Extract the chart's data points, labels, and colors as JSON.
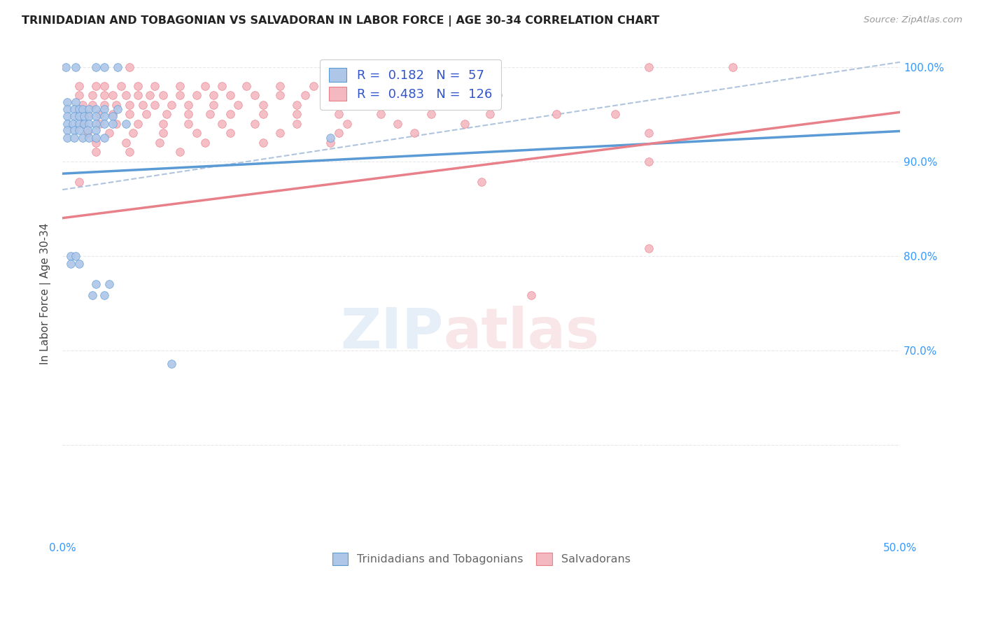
{
  "title": "TRINIDADIAN AND TOBAGONIAN VS SALVADORAN IN LABOR FORCE | AGE 30-34 CORRELATION CHART",
  "source": "Source: ZipAtlas.com",
  "ylabel": "In Labor Force | Age 30-34",
  "x_min": 0.0,
  "x_max": 0.5,
  "y_min": 0.5,
  "y_max": 1.02,
  "blue_scatter": [
    [
      0.002,
      1.0
    ],
    [
      0.008,
      1.0
    ],
    [
      0.02,
      1.0
    ],
    [
      0.025,
      1.0
    ],
    [
      0.033,
      1.0
    ],
    [
      0.003,
      0.963
    ],
    [
      0.008,
      0.963
    ],
    [
      0.003,
      0.955
    ],
    [
      0.007,
      0.955
    ],
    [
      0.01,
      0.955
    ],
    [
      0.012,
      0.955
    ],
    [
      0.016,
      0.955
    ],
    [
      0.02,
      0.955
    ],
    [
      0.025,
      0.955
    ],
    [
      0.033,
      0.955
    ],
    [
      0.003,
      0.948
    ],
    [
      0.007,
      0.948
    ],
    [
      0.01,
      0.948
    ],
    [
      0.013,
      0.948
    ],
    [
      0.016,
      0.948
    ],
    [
      0.02,
      0.948
    ],
    [
      0.025,
      0.948
    ],
    [
      0.03,
      0.948
    ],
    [
      0.003,
      0.94
    ],
    [
      0.006,
      0.94
    ],
    [
      0.01,
      0.94
    ],
    [
      0.013,
      0.94
    ],
    [
      0.016,
      0.94
    ],
    [
      0.02,
      0.94
    ],
    [
      0.025,
      0.94
    ],
    [
      0.03,
      0.94
    ],
    [
      0.038,
      0.94
    ],
    [
      0.003,
      0.933
    ],
    [
      0.007,
      0.933
    ],
    [
      0.01,
      0.933
    ],
    [
      0.015,
      0.933
    ],
    [
      0.02,
      0.933
    ],
    [
      0.003,
      0.925
    ],
    [
      0.007,
      0.925
    ],
    [
      0.012,
      0.925
    ],
    [
      0.016,
      0.925
    ],
    [
      0.02,
      0.925
    ],
    [
      0.025,
      0.925
    ],
    [
      0.16,
      0.925
    ],
    [
      0.005,
      0.8
    ],
    [
      0.008,
      0.8
    ],
    [
      0.005,
      0.792
    ],
    [
      0.01,
      0.792
    ],
    [
      0.02,
      0.77
    ],
    [
      0.028,
      0.77
    ],
    [
      0.018,
      0.758
    ],
    [
      0.025,
      0.758
    ],
    [
      0.065,
      0.686
    ]
  ],
  "pink_scatter": [
    [
      0.04,
      1.0
    ],
    [
      0.35,
      1.0
    ],
    [
      0.4,
      1.0
    ],
    [
      0.01,
      0.98
    ],
    [
      0.02,
      0.98
    ],
    [
      0.025,
      0.98
    ],
    [
      0.035,
      0.98
    ],
    [
      0.045,
      0.98
    ],
    [
      0.055,
      0.98
    ],
    [
      0.07,
      0.98
    ],
    [
      0.085,
      0.98
    ],
    [
      0.095,
      0.98
    ],
    [
      0.11,
      0.98
    ],
    [
      0.13,
      0.98
    ],
    [
      0.15,
      0.98
    ],
    [
      0.175,
      0.98
    ],
    [
      0.01,
      0.97
    ],
    [
      0.018,
      0.97
    ],
    [
      0.025,
      0.97
    ],
    [
      0.03,
      0.97
    ],
    [
      0.038,
      0.97
    ],
    [
      0.045,
      0.97
    ],
    [
      0.052,
      0.97
    ],
    [
      0.06,
      0.97
    ],
    [
      0.07,
      0.97
    ],
    [
      0.08,
      0.97
    ],
    [
      0.09,
      0.97
    ],
    [
      0.1,
      0.97
    ],
    [
      0.115,
      0.97
    ],
    [
      0.13,
      0.97
    ],
    [
      0.145,
      0.97
    ],
    [
      0.16,
      0.97
    ],
    [
      0.18,
      0.97
    ],
    [
      0.2,
      0.97
    ],
    [
      0.23,
      0.97
    ],
    [
      0.26,
      0.97
    ],
    [
      0.012,
      0.96
    ],
    [
      0.018,
      0.96
    ],
    [
      0.025,
      0.96
    ],
    [
      0.032,
      0.96
    ],
    [
      0.04,
      0.96
    ],
    [
      0.048,
      0.96
    ],
    [
      0.055,
      0.96
    ],
    [
      0.065,
      0.96
    ],
    [
      0.075,
      0.96
    ],
    [
      0.09,
      0.96
    ],
    [
      0.105,
      0.96
    ],
    [
      0.12,
      0.96
    ],
    [
      0.14,
      0.96
    ],
    [
      0.16,
      0.96
    ],
    [
      0.185,
      0.96
    ],
    [
      0.21,
      0.96
    ],
    [
      0.015,
      0.95
    ],
    [
      0.022,
      0.95
    ],
    [
      0.03,
      0.95
    ],
    [
      0.04,
      0.95
    ],
    [
      0.05,
      0.95
    ],
    [
      0.062,
      0.95
    ],
    [
      0.075,
      0.95
    ],
    [
      0.088,
      0.95
    ],
    [
      0.1,
      0.95
    ],
    [
      0.12,
      0.95
    ],
    [
      0.14,
      0.95
    ],
    [
      0.165,
      0.95
    ],
    [
      0.19,
      0.95
    ],
    [
      0.22,
      0.95
    ],
    [
      0.255,
      0.95
    ],
    [
      0.295,
      0.95
    ],
    [
      0.33,
      0.95
    ],
    [
      0.012,
      0.94
    ],
    [
      0.022,
      0.94
    ],
    [
      0.032,
      0.94
    ],
    [
      0.045,
      0.94
    ],
    [
      0.06,
      0.94
    ],
    [
      0.075,
      0.94
    ],
    [
      0.095,
      0.94
    ],
    [
      0.115,
      0.94
    ],
    [
      0.14,
      0.94
    ],
    [
      0.17,
      0.94
    ],
    [
      0.2,
      0.94
    ],
    [
      0.24,
      0.94
    ],
    [
      0.015,
      0.93
    ],
    [
      0.028,
      0.93
    ],
    [
      0.042,
      0.93
    ],
    [
      0.06,
      0.93
    ],
    [
      0.08,
      0.93
    ],
    [
      0.1,
      0.93
    ],
    [
      0.13,
      0.93
    ],
    [
      0.165,
      0.93
    ],
    [
      0.21,
      0.93
    ],
    [
      0.35,
      0.93
    ],
    [
      0.02,
      0.92
    ],
    [
      0.038,
      0.92
    ],
    [
      0.058,
      0.92
    ],
    [
      0.085,
      0.92
    ],
    [
      0.12,
      0.92
    ],
    [
      0.16,
      0.92
    ],
    [
      0.02,
      0.91
    ],
    [
      0.04,
      0.91
    ],
    [
      0.07,
      0.91
    ],
    [
      0.35,
      0.9
    ],
    [
      0.01,
      0.878
    ],
    [
      0.25,
      0.878
    ],
    [
      0.35,
      0.808
    ],
    [
      0.28,
      0.758
    ]
  ],
  "blue_line": {
    "x0": 0.0,
    "x1": 0.5,
    "y0": 0.887,
    "y1": 0.932
  },
  "pink_line": {
    "x0": 0.0,
    "x1": 0.5,
    "y0": 0.84,
    "y1": 0.952
  },
  "dashed_line": {
    "x0": 0.0,
    "x1": 0.5,
    "y0": 0.87,
    "y1": 1.005
  },
  "blue_color": "#aec6e8",
  "pink_color": "#f4b8c1",
  "blue_line_color": "#5b9bd5",
  "pink_line_color": "#e8808a",
  "dashed_line_color": "#b0c4de",
  "watermark_zip": "ZIP",
  "watermark_atlas": "atlas",
  "background_color": "#ffffff",
  "grid_color": "#e8e8e8"
}
